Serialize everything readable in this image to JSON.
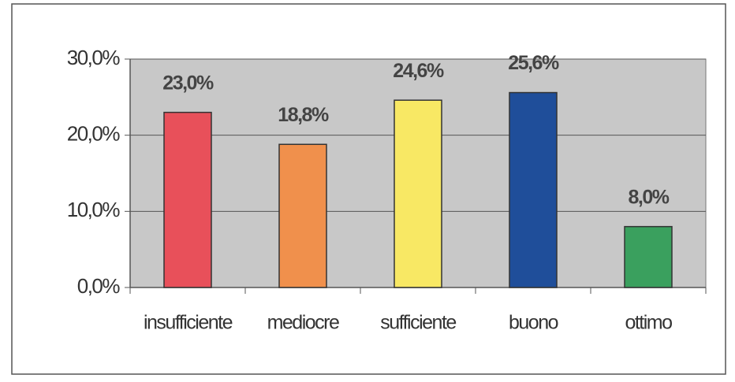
{
  "chart_data": {
    "type": "bar",
    "categories": [
      "insufficiente",
      "mediocre",
      "sufficiente",
      "buono",
      "ottimo"
    ],
    "values": [
      23.0,
      18.8,
      24.6,
      25.6,
      8.0
    ],
    "value_labels": [
      "23,0%",
      "18,8%",
      "24,6%",
      "25,6%",
      "8,0%"
    ],
    "colors": [
      "#e8505a",
      "#f0904c",
      "#f8e864",
      "#1f4e9a",
      "#3aa05e"
    ],
    "ylim": [
      0,
      30
    ],
    "yticks": [
      {
        "value": 0,
        "label": "0,0%"
      },
      {
        "value": 10,
        "label": "10,0%"
      },
      {
        "value": 20,
        "label": "20,0%"
      },
      {
        "value": 30,
        "label": "30,0%"
      }
    ],
    "grid": true
  }
}
